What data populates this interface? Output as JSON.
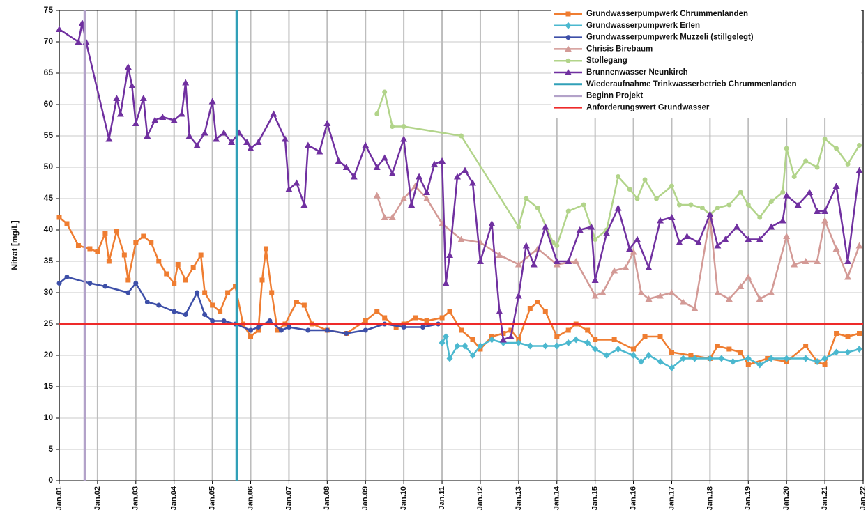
{
  "chart_data": {
    "type": "line",
    "y_label": "Nitrat [mg/L]",
    "xlim": [
      2001,
      2022
    ],
    "ylim": [
      0,
      75
    ],
    "yticks": [
      0,
      5,
      10,
      15,
      20,
      25,
      30,
      35,
      40,
      45,
      50,
      55,
      60,
      65,
      70,
      75
    ],
    "xticks": [
      {
        "value": 2001,
        "label": "Jan.01"
      },
      {
        "value": 2002,
        "label": "Jan.02"
      },
      {
        "value": 2003,
        "label": "Jan.03"
      },
      {
        "value": 2004,
        "label": "Jan.04"
      },
      {
        "value": 2005,
        "label": "Jan.05"
      },
      {
        "value": 2006,
        "label": "Jan.06"
      },
      {
        "value": 2007,
        "label": "Jan.07"
      },
      {
        "value": 2008,
        "label": "Jan.08"
      },
      {
        "value": 2009,
        "label": "Jan.09"
      },
      {
        "value": 2010,
        "label": "Jan.10"
      },
      {
        "value": 2011,
        "label": "Jan.11"
      },
      {
        "value": 2012,
        "label": "Jan.12"
      },
      {
        "value": 2013,
        "label": "Jan.13"
      },
      {
        "value": 2014,
        "label": "Jan.14"
      },
      {
        "value": 2015,
        "label": "Jan.15"
      },
      {
        "value": 2016,
        "label": "Jan.16"
      },
      {
        "value": 2017,
        "label": "Jan.17"
      },
      {
        "value": 2018,
        "label": "Jan.18"
      },
      {
        "value": 2019,
        "label": "Jan.19"
      },
      {
        "value": 2020,
        "label": "Jan.20"
      },
      {
        "value": 2021,
        "label": "Jan.21"
      },
      {
        "value": 2022,
        "label": "Jan.22"
      }
    ],
    "grid": true,
    "legend": "upper right",
    "series": [
      {
        "name": "Grundwasserpumpwerk Chrummenlanden",
        "color": "#ef7d31",
        "marker": "square",
        "x": [
          2001,
          2001.2,
          2001.5,
          2001.8,
          2002,
          2002.2,
          2002.3,
          2002.5,
          2002.7,
          2002.8,
          2003,
          2003.2,
          2003.4,
          2003.6,
          2003.8,
          2004,
          2004.1,
          2004.3,
          2004.5,
          2004.7,
          2004.8,
          2005,
          2005.2,
          2005.4,
          2005.6,
          2005.8,
          2006,
          2006.2,
          2006.3,
          2006.4,
          2006.55,
          2006.7,
          2006.9,
          2007.2,
          2007.4,
          2007.6,
          2008,
          2008.5,
          2009,
          2009.3,
          2009.5,
          2009.8,
          2010,
          2010.3,
          2010.6,
          2011,
          2011.2,
          2011.5,
          2011.8,
          2012,
          2012.3,
          2012.6,
          2012.8,
          2013,
          2013.3,
          2013.5,
          2013.7,
          2014,
          2014.3,
          2014.5,
          2014.8,
          2015,
          2015.5,
          2016,
          2016.3,
          2016.7,
          2017,
          2017.5,
          2018,
          2018.2,
          2018.5,
          2018.8,
          2019,
          2019.5,
          2020,
          2020.5,
          2020.8,
          2021,
          2021.3,
          2021.6,
          2021.9
        ],
        "values": [
          42,
          41,
          37.5,
          37,
          36.5,
          39.5,
          35,
          39.8,
          36,
          32,
          38,
          39,
          38,
          35,
          33,
          31.5,
          34.5,
          32,
          34,
          36,
          30,
          28,
          27,
          30,
          31,
          25,
          23,
          24,
          32,
          37,
          30,
          24,
          25,
          28.5,
          28,
          25,
          24,
          23.5,
          25.5,
          27,
          26,
          24.5,
          25,
          26,
          25.5,
          26,
          27,
          24,
          22.5,
          21,
          23,
          23.5,
          24,
          22.5,
          27.5,
          28.5,
          27,
          23,
          24,
          25,
          24,
          22.5,
          22.5,
          21,
          23,
          23,
          20.5,
          20,
          19.5,
          21.5,
          21,
          20.5,
          18.5,
          19.5,
          19,
          21.5,
          19,
          18.5,
          23.5,
          23,
          23.5
        ]
      },
      {
        "name": "Grundwasserpumpwerk Erlen",
        "color": "#4bb8cf",
        "marker": "diamond",
        "x": [
          2011,
          2011.1,
          2011.2,
          2011.4,
          2011.6,
          2011.8,
          2012,
          2012.3,
          2012.6,
          2013,
          2013.3,
          2013.7,
          2014,
          2014.3,
          2014.5,
          2014.8,
          2015,
          2015.3,
          2015.6,
          2016,
          2016.2,
          2016.4,
          2016.7,
          2017,
          2017.3,
          2017.6,
          2018,
          2018.3,
          2018.6,
          2019,
          2019.3,
          2019.6,
          2020,
          2020.5,
          2020.8,
          2021,
          2021.3,
          2021.6,
          2021.9
        ],
        "values": [
          22,
          23,
          19.5,
          21.5,
          21.5,
          20,
          21.5,
          22.5,
          22,
          22,
          21.5,
          21.5,
          21.5,
          22,
          22.5,
          22,
          21,
          20,
          21,
          20,
          19,
          20,
          19,
          18,
          19.5,
          19.5,
          19.5,
          19.5,
          19,
          19.5,
          18.5,
          19.5,
          19.5,
          19.5,
          19,
          19.5,
          20.5,
          20.5,
          21
        ]
      },
      {
        "name": "Grundwasserpumpwerk Muzzeli (stillgelegt)",
        "color": "#3d4fa8",
        "marker": "circle",
        "x": [
          2001,
          2001.2,
          2001.8,
          2002.2,
          2002.8,
          2003,
          2003.3,
          2003.6,
          2004,
          2004.3,
          2004.6,
          2004.8,
          2005,
          2005.3,
          2005.6,
          2006,
          2006.2,
          2006.5,
          2006.8,
          2007,
          2007.5,
          2008,
          2008.5,
          2009,
          2009.5,
          2010,
          2010.5,
          2010.9
        ],
        "values": [
          31.5,
          32.5,
          31.5,
          31,
          30,
          31.5,
          28.5,
          28,
          27,
          26.5,
          30,
          26.5,
          25.5,
          25.5,
          25,
          24,
          24.5,
          25.5,
          24,
          24.5,
          24,
          24,
          23.5,
          24,
          25,
          24.5,
          24.5,
          25
        ]
      },
      {
        "name": "Chrisis Birebaum",
        "color": "#d39a96",
        "marker": "triangle",
        "x": [
          2009.3,
          2009.5,
          2009.7,
          2010,
          2010.3,
          2010.6,
          2011,
          2011.5,
          2012,
          2012.5,
          2013,
          2013.5,
          2014,
          2014.5,
          2015,
          2015.2,
          2015.5,
          2015.8,
          2016,
          2016.2,
          2016.4,
          2016.7,
          2017,
          2017.3,
          2017.6,
          2018,
          2018.2,
          2018.5,
          2018.8,
          2019,
          2019.3,
          2019.6,
          2020,
          2020.2,
          2020.5,
          2020.8,
          2021,
          2021.3,
          2021.6,
          2021.9
        ],
        "values": [
          45.5,
          42,
          42,
          45,
          47,
          45,
          41,
          38.5,
          38,
          36,
          34.5,
          37,
          34.5,
          35,
          29.5,
          30,
          33.5,
          34,
          36.5,
          30,
          29,
          29.5,
          30,
          28.5,
          27.5,
          42,
          30,
          29,
          31,
          32.5,
          29,
          30,
          39,
          34.5,
          35,
          35,
          41.5,
          37,
          32.5,
          37.5
        ]
      },
      {
        "name": "Stollegang",
        "color": "#b2d48a",
        "marker": "circle",
        "x": [
          2009.3,
          2009.5,
          2009.7,
          2010,
          2011.5,
          2013,
          2013.2,
          2013.5,
          2013.9,
          2014,
          2014.3,
          2014.7,
          2015,
          2015.3,
          2015.6,
          2015.9,
          2016.1,
          2016.3,
          2016.6,
          2017,
          2017.2,
          2017.5,
          2017.8,
          2018,
          2018.2,
          2018.5,
          2018.8,
          2019,
          2019.3,
          2019.6,
          2019.9,
          2020,
          2020.2,
          2020.5,
          2020.8,
          2021,
          2021.3,
          2021.6,
          2021.9
        ],
        "values": [
          58.5,
          62,
          56.5,
          56.5,
          55,
          40.5,
          45,
          43.5,
          38,
          37.5,
          43,
          44,
          38.5,
          40,
          48.5,
          46.5,
          45,
          48,
          45,
          47,
          44,
          44,
          43.5,
          42.5,
          43.5,
          44,
          46,
          44,
          42,
          44.5,
          46,
          53,
          48.5,
          51,
          50,
          54.5,
          53,
          50.5,
          53.5
        ]
      },
      {
        "name": "Brunnenwasser Neunkirch",
        "color": "#7030a0",
        "marker": "triangle",
        "x": [
          2001,
          2001.5,
          2001.6,
          2001.7,
          2002.3,
          2002.5,
          2002.6,
          2002.8,
          2002.9,
          2003,
          2003.2,
          2003.3,
          2003.5,
          2003.7,
          2004,
          2004.2,
          2004.3,
          2004.4,
          2004.6,
          2004.8,
          2005,
          2005.1,
          2005.3,
          2005.5,
          2005.7,
          2005.9,
          2006,
          2006.2,
          2006.6,
          2006.9,
          2007,
          2007.2,
          2007.4,
          2007.5,
          2007.8,
          2008,
          2008.3,
          2008.5,
          2008.7,
          2009,
          2009.3,
          2009.5,
          2009.7,
          2010,
          2010.2,
          2010.4,
          2010.6,
          2010.8,
          2011,
          2011.1,
          2011.2,
          2011.4,
          2011.6,
          2011.8,
          2012,
          2012.3,
          2012.5,
          2012.6,
          2012.8,
          2013,
          2013.2,
          2013.4,
          2013.7,
          2014,
          2014.3,
          2014.6,
          2014.9,
          2015,
          2015.3,
          2015.6,
          2015.9,
          2016.1,
          2016.4,
          2016.7,
          2017,
          2017.2,
          2017.4,
          2017.7,
          2018,
          2018.2,
          2018.4,
          2018.7,
          2019,
          2019.3,
          2019.6,
          2019.9,
          2020,
          2020.3,
          2020.6,
          2020.8,
          2021,
          2021.3,
          2021.6,
          2021.9
        ],
        "values": [
          72,
          70,
          73,
          70,
          54.5,
          61,
          58.5,
          66,
          63,
          57,
          61,
          55,
          57.5,
          58,
          57.5,
          58.5,
          63.5,
          55,
          53.5,
          55.5,
          60.5,
          54.5,
          55.5,
          54,
          55.5,
          54,
          53,
          54,
          58.5,
          54.5,
          46.5,
          47.5,
          44,
          53.5,
          52.5,
          57,
          51,
          50,
          48.5,
          53.5,
          50,
          51.5,
          49,
          54.5,
          44,
          48.5,
          46,
          50.5,
          51,
          31.5,
          36,
          48.5,
          49.5,
          47.5,
          35,
          41,
          27,
          22.5,
          23,
          29.5,
          37.5,
          34.5,
          40.5,
          35,
          35,
          40,
          40.5,
          32,
          39.5,
          43.5,
          37,
          38.5,
          34,
          41.5,
          42,
          38,
          39,
          38,
          42.5,
          37.5,
          38.5,
          40.5,
          38.5,
          38.5,
          40.5,
          41.5,
          45.5,
          44,
          46,
          43,
          43,
          47,
          35,
          49.5
        ]
      },
      {
        "name": "Wiederaufnahme Trinkwasserbetrieb Chrummenlanden",
        "color": "#31a0b8",
        "vline": 2005.64
      },
      {
        "name": "Beginn Projekt",
        "color": "#b3a2c9",
        "vline": 2001.67
      },
      {
        "name": "Anforderungswert Grundwasser",
        "color": "#ee2a2a",
        "hline": 25
      }
    ]
  }
}
